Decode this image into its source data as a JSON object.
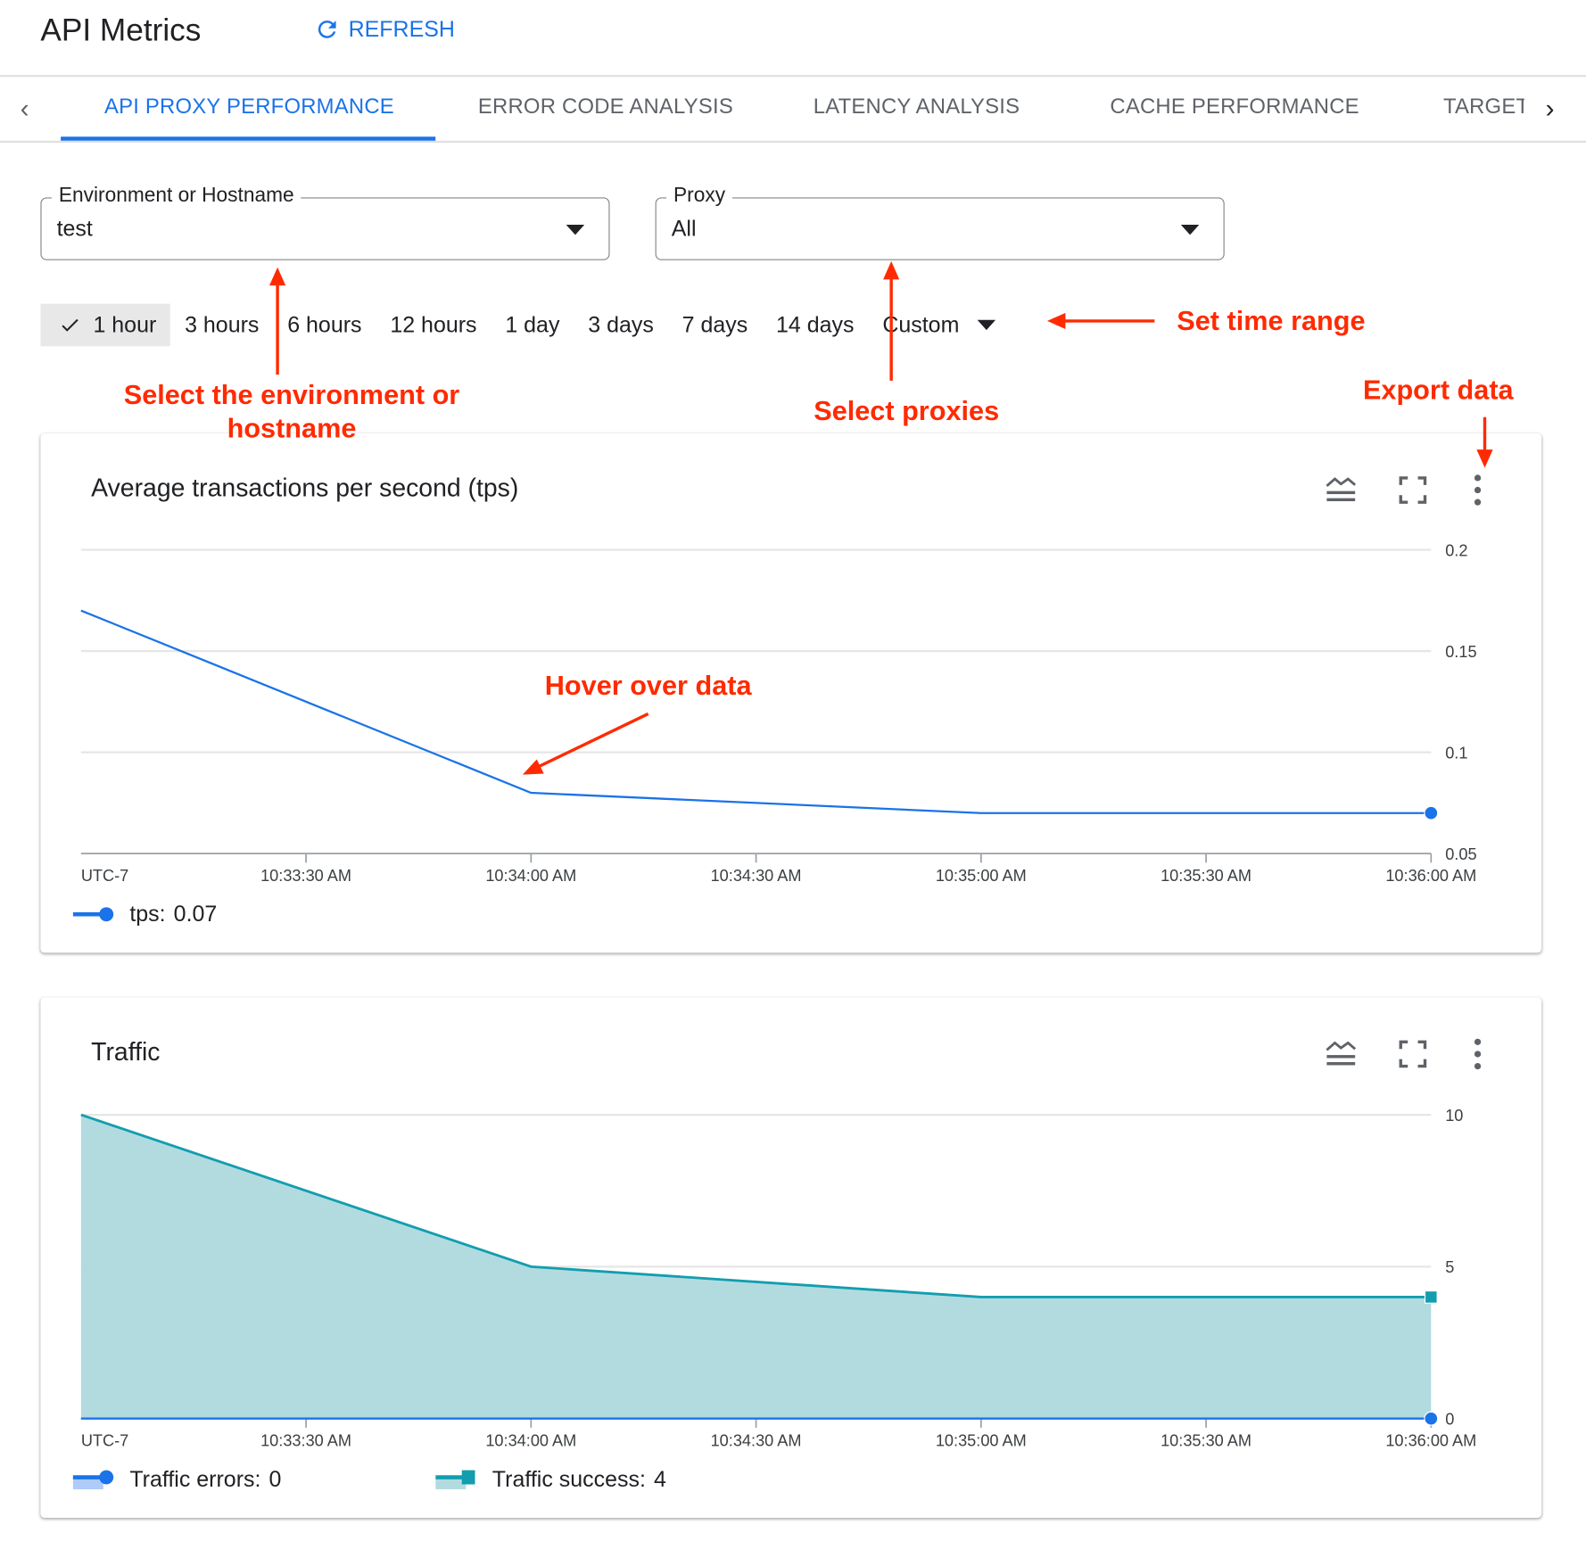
{
  "header": {
    "title": "API Metrics",
    "refresh_label": "REFRESH"
  },
  "tabs": [
    {
      "label": "API PROXY PERFORMANCE",
      "active": true
    },
    {
      "label": "ERROR CODE ANALYSIS"
    },
    {
      "label": "LATENCY ANALYSIS"
    },
    {
      "label": "CACHE PERFORMANCE"
    },
    {
      "label": "TARGET"
    }
  ],
  "filters": {
    "environment": {
      "label": "Environment or Hostname",
      "value": "test"
    },
    "proxy": {
      "label": "Proxy",
      "value": "All"
    }
  },
  "time_ranges": {
    "selected": "1 hour",
    "options": [
      "1 hour",
      "3 hours",
      "6 hours",
      "12 hours",
      "1 day",
      "3 days",
      "7 days",
      "14 days"
    ],
    "custom_label": "Custom"
  },
  "annotations": {
    "environment": "Select the environment or hostname",
    "proxies": "Select proxies",
    "time_range": "Set time range",
    "export": "Export data",
    "hover": "Hover over data",
    "color": "#ff2a00"
  },
  "chart_data": [
    {
      "type": "line",
      "title": "Average transactions per second (tps)",
      "timezone_label": "UTC-7",
      "x": [
        "10:33:00 AM",
        "10:34:00 AM",
        "10:35:00 AM",
        "10:36:00 AM"
      ],
      "x_ticks": [
        "10:33:30 AM",
        "10:34:00 AM",
        "10:34:30 AM",
        "10:35:00 AM",
        "10:35:30 AM",
        "10:36:00 AM"
      ],
      "y_ticks": [
        "0.2",
        "0.15",
        "0.1",
        "0.05"
      ],
      "ylim": [
        0.05,
        0.2
      ],
      "grid": true,
      "series": [
        {
          "name": "tps",
          "values": [
            0.17,
            0.08,
            0.07,
            0.07
          ],
          "color": "#1a73e8"
        }
      ],
      "legend": [
        {
          "label": "tps:",
          "value": "0.07"
        }
      ]
    },
    {
      "type": "area",
      "title": "Traffic",
      "timezone_label": "UTC-7",
      "x": [
        "10:33:00 AM",
        "10:34:00 AM",
        "10:35:00 AM",
        "10:36:00 AM"
      ],
      "x_ticks": [
        "10:33:30 AM",
        "10:34:00 AM",
        "10:34:30 AM",
        "10:35:00 AM",
        "10:35:30 AM",
        "10:36:00 AM"
      ],
      "y_ticks": [
        "10",
        "5",
        "0"
      ],
      "ylim": [
        0,
        10
      ],
      "grid": true,
      "series": [
        {
          "name": "Traffic errors",
          "values": [
            0,
            0,
            0,
            0
          ],
          "color": "#1a73e8"
        },
        {
          "name": "Traffic success",
          "values": [
            10,
            5,
            4,
            4
          ],
          "color": "#129eaf",
          "fill": "#b2dbe0"
        }
      ],
      "legend": [
        {
          "label": "Traffic errors:",
          "value": "0"
        },
        {
          "label": "Traffic success:",
          "value": "4"
        }
      ]
    }
  ]
}
